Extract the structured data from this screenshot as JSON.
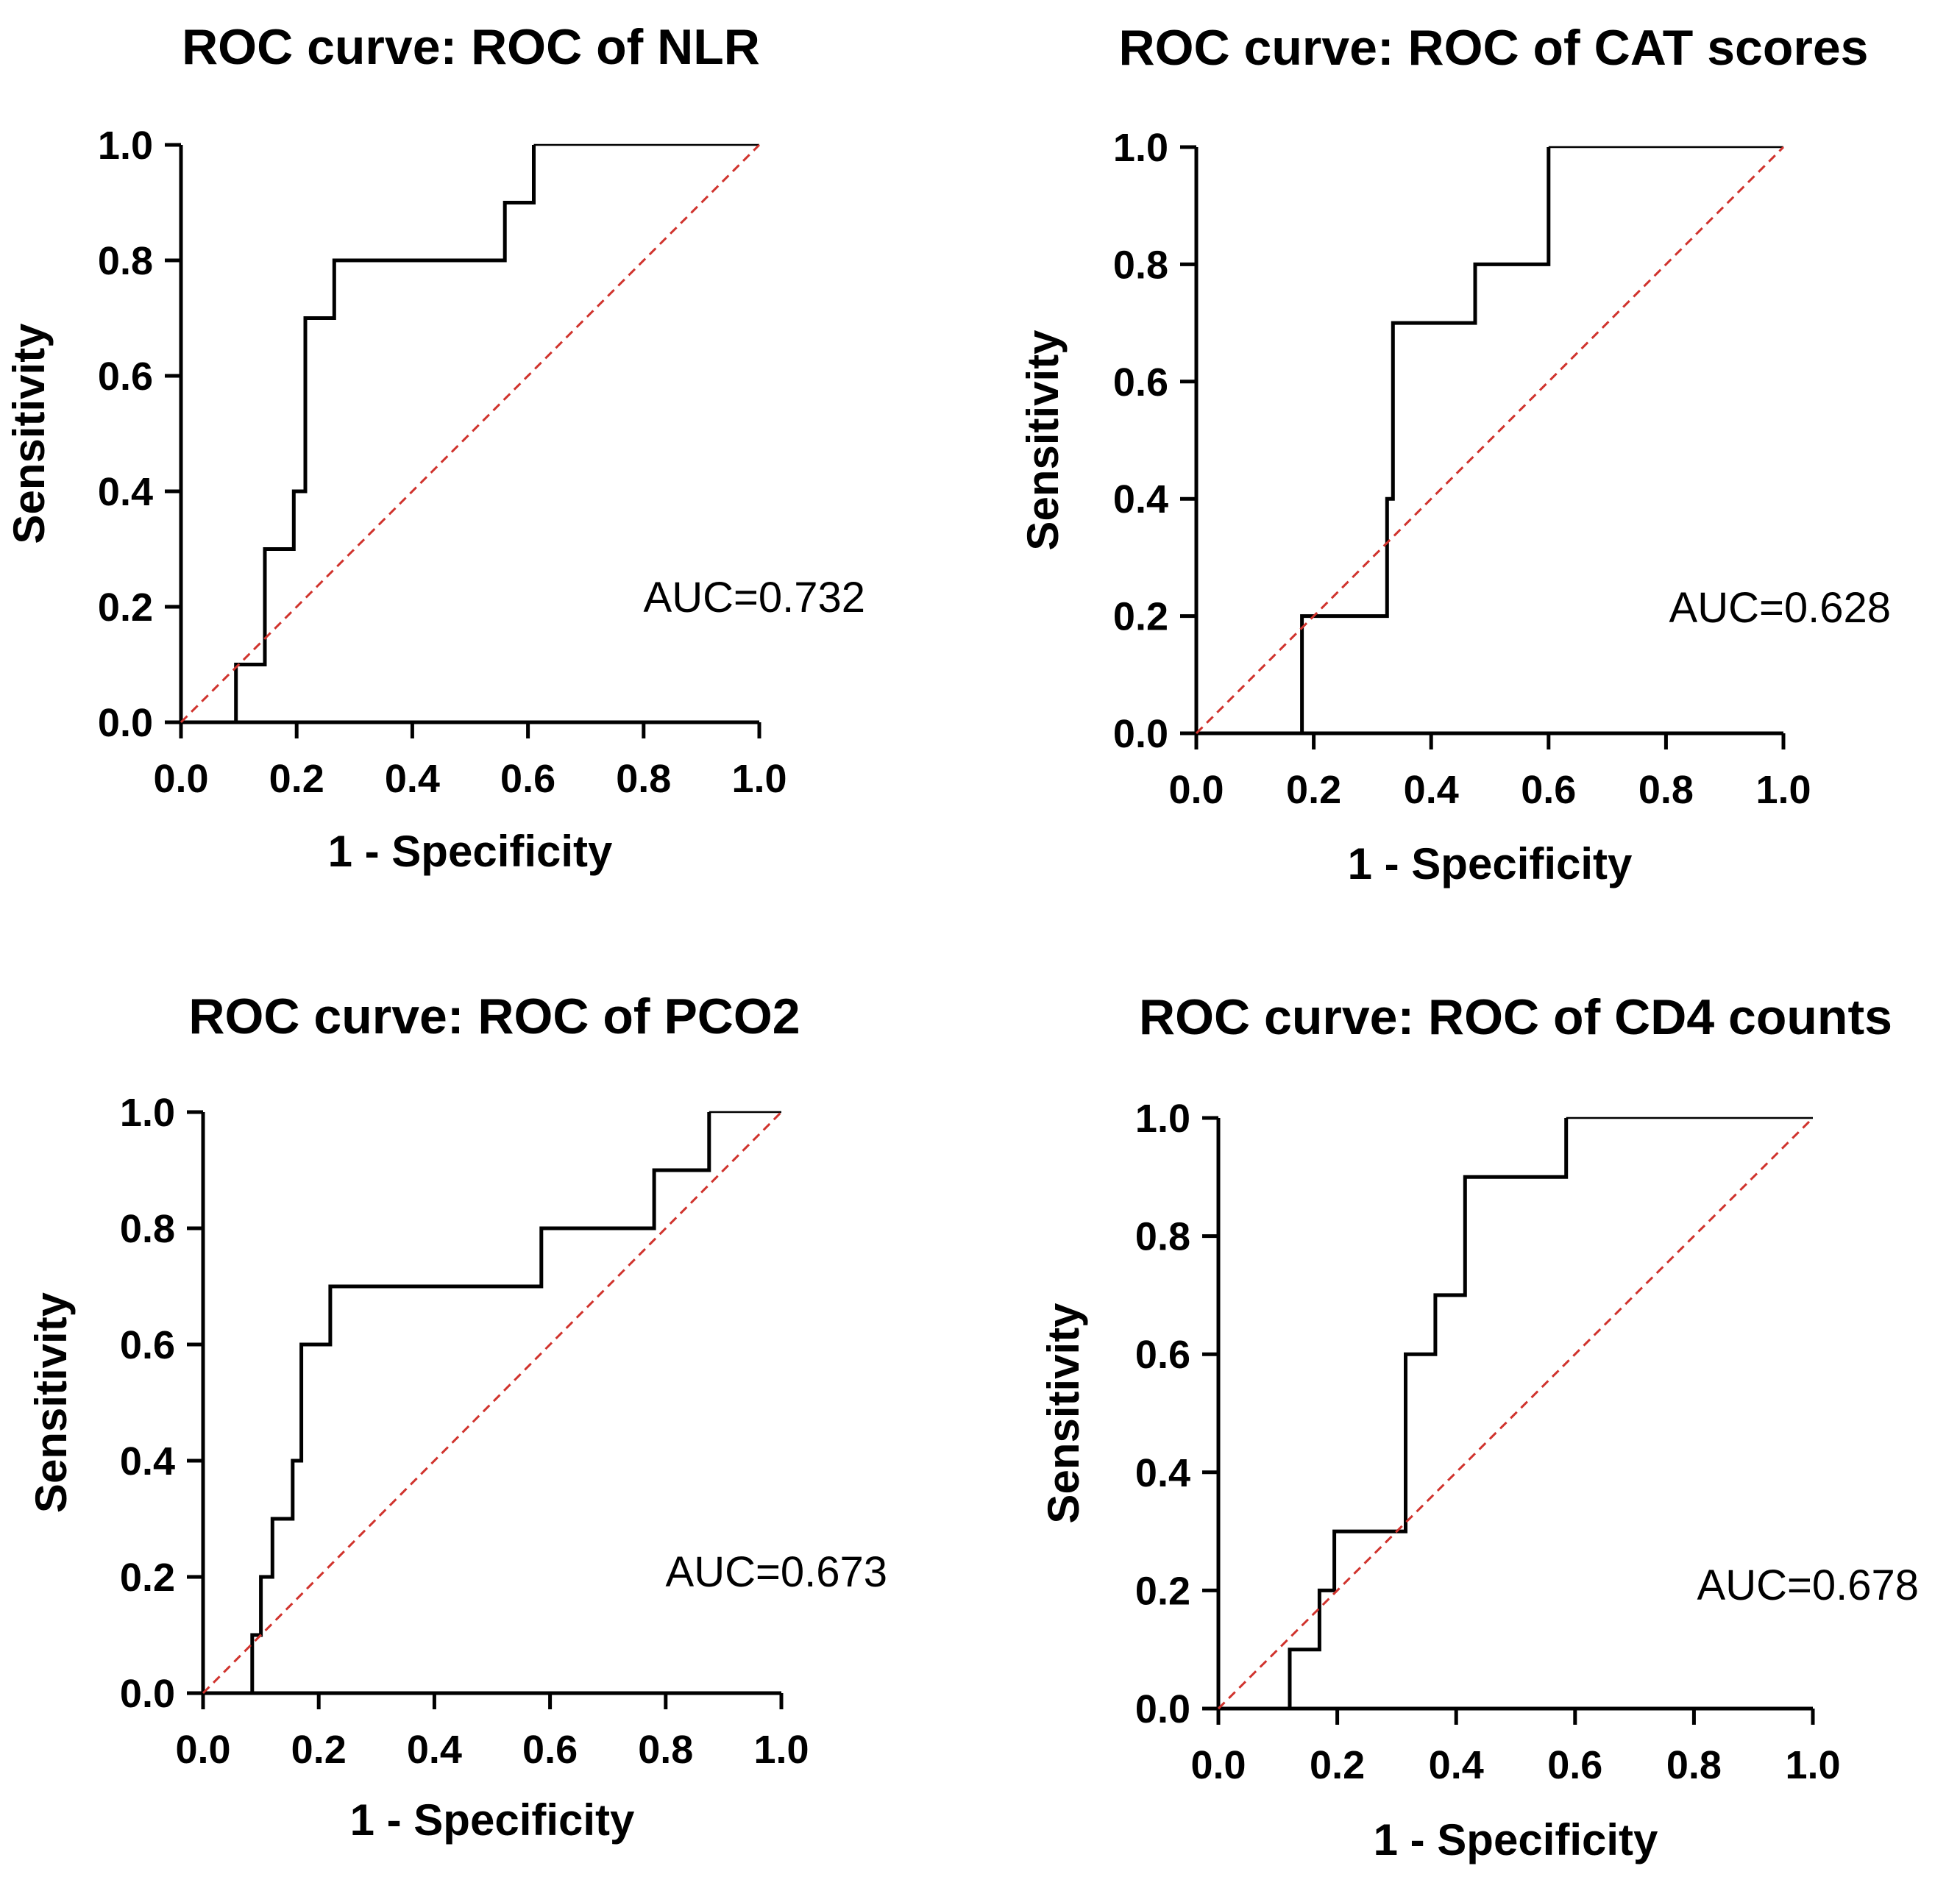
{
  "colors": {
    "curve": "#000000",
    "reference": "#d0332d",
    "axis": "#000000"
  },
  "chart_data": [
    {
      "type": "line",
      "title": "ROC curve: ROC of NLR",
      "xlabel": "1 - Specificity",
      "ylabel": "Sensitivity",
      "xlim": [
        0,
        1
      ],
      "ylim": [
        0,
        1
      ],
      "xticks": [
        "0.0",
        "0.2",
        "0.4",
        "0.6",
        "0.8",
        "1.0"
      ],
      "yticks": [
        "0.0",
        "0.2",
        "0.4",
        "0.6",
        "0.8",
        "1.0"
      ],
      "annotation": "AUC=0.732",
      "series": [
        {
          "name": "ROC",
          "style": "step",
          "x": [
            0,
            0.095,
            0.095,
            0.145,
            0.145,
            0.195,
            0.195,
            0.215,
            0.215,
            0.265,
            0.265,
            0.56,
            0.56,
            0.61,
            0.61,
            1.0
          ],
          "y": [
            0,
            0,
            0.1,
            0.1,
            0.3,
            0.3,
            0.4,
            0.4,
            0.7,
            0.7,
            0.8,
            0.8,
            0.9,
            0.9,
            1.0,
            1.0
          ]
        },
        {
          "name": "Reference",
          "style": "dashed",
          "x": [
            0,
            1
          ],
          "y": [
            0,
            1
          ]
        }
      ]
    },
    {
      "type": "line",
      "title": "ROC curve: ROC of CAT scores",
      "xlabel": "1 - Specificity",
      "ylabel": "Sensitivity",
      "xlim": [
        0,
        1
      ],
      "ylim": [
        0,
        1
      ],
      "xticks": [
        "0.0",
        "0.2",
        "0.4",
        "0.6",
        "0.8",
        "1.0"
      ],
      "yticks": [
        "0.0",
        "0.2",
        "0.4",
        "0.6",
        "0.8",
        "1.0"
      ],
      "annotation": "AUC=0.628",
      "series": [
        {
          "name": "ROC",
          "style": "step",
          "x": [
            0,
            0.18,
            0.18,
            0.325,
            0.325,
            0.335,
            0.335,
            0.475,
            0.475,
            0.6,
            0.6,
            1.0
          ],
          "y": [
            0,
            0,
            0.2,
            0.2,
            0.4,
            0.4,
            0.7,
            0.7,
            0.8,
            0.8,
            1.0,
            1.0
          ]
        },
        {
          "name": "Reference",
          "style": "dashed",
          "x": [
            0,
            1
          ],
          "y": [
            0,
            1
          ]
        }
      ]
    },
    {
      "type": "line",
      "title": "ROC curve: ROC of PCO2",
      "xlabel": "1 - Specificity",
      "ylabel": "Sensitivity",
      "xlim": [
        0,
        1
      ],
      "ylim": [
        0,
        1
      ],
      "xticks": [
        "0.0",
        "0.2",
        "0.4",
        "0.6",
        "0.8",
        "1.0"
      ],
      "yticks": [
        "0.0",
        "0.2",
        "0.4",
        "0.6",
        "0.8",
        "1.0"
      ],
      "annotation": "AUC=0.673",
      "series": [
        {
          "name": "ROC",
          "style": "step",
          "x": [
            0,
            0.085,
            0.085,
            0.1,
            0.1,
            0.12,
            0.12,
            0.155,
            0.155,
            0.17,
            0.17,
            0.22,
            0.22,
            0.585,
            0.585,
            0.78,
            0.78,
            0.875,
            0.875,
            1.0
          ],
          "y": [
            0,
            0,
            0.1,
            0.1,
            0.2,
            0.2,
            0.3,
            0.3,
            0.4,
            0.4,
            0.6,
            0.6,
            0.7,
            0.7,
            0.8,
            0.8,
            0.9,
            0.9,
            1.0,
            1.0
          ]
        },
        {
          "name": "Reference",
          "style": "dashed",
          "x": [
            0,
            1
          ],
          "y": [
            0,
            1
          ]
        }
      ]
    },
    {
      "type": "line",
      "title": "ROC curve: ROC of CD4 counts",
      "xlabel": "1 - Specificity",
      "ylabel": "Sensitivity",
      "xlim": [
        0,
        1
      ],
      "ylim": [
        0,
        1
      ],
      "xticks": [
        "0.0",
        "0.2",
        "0.4",
        "0.6",
        "0.8",
        "1.0"
      ],
      "yticks": [
        "0.0",
        "0.2",
        "0.4",
        "0.6",
        "0.8",
        "1.0"
      ],
      "annotation": "AUC=0.678",
      "series": [
        {
          "name": "ROC",
          "style": "step",
          "x": [
            0,
            0.12,
            0.12,
            0.17,
            0.17,
            0.195,
            0.195,
            0.315,
            0.315,
            0.365,
            0.365,
            0.415,
            0.415,
            0.585,
            0.585,
            1.0
          ],
          "y": [
            0,
            0,
            0.1,
            0.1,
            0.2,
            0.2,
            0.3,
            0.3,
            0.6,
            0.6,
            0.7,
            0.7,
            0.9,
            0.9,
            1.0,
            1.0
          ]
        },
        {
          "name": "Reference",
          "style": "dashed",
          "x": [
            0,
            1
          ],
          "y": [
            0,
            1
          ]
        }
      ]
    }
  ]
}
